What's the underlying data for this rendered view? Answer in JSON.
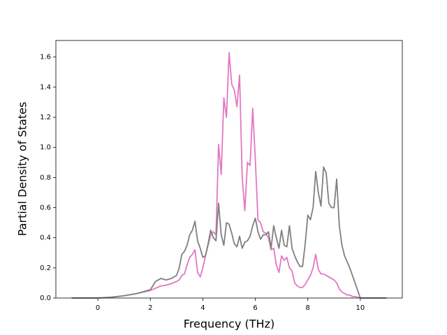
{
  "chart_data": {
    "type": "line",
    "xlabel": "Frequency (THz)",
    "ylabel": "Partial Density of States",
    "x": [
      -1,
      0,
      0.5,
      1,
      1.5,
      2,
      2.2,
      2.4,
      2.6,
      2.8,
      3.0,
      3.1,
      3.2,
      3.3,
      3.4,
      3.5,
      3.6,
      3.7,
      3.8,
      3.9,
      4.0,
      4.1,
      4.2,
      4.3,
      4.4,
      4.5,
      4.6,
      4.7,
      4.8,
      4.9,
      5.0,
      5.1,
      5.2,
      5.3,
      5.4,
      5.5,
      5.6,
      5.7,
      5.8,
      5.9,
      6.0,
      6.1,
      6.2,
      6.3,
      6.4,
      6.5,
      6.6,
      6.7,
      6.8,
      6.9,
      7.0,
      7.1,
      7.2,
      7.3,
      7.4,
      7.5,
      7.6,
      7.7,
      7.8,
      7.9,
      8.0,
      8.1,
      8.2,
      8.3,
      8.4,
      8.5,
      8.6,
      8.7,
      8.8,
      8.9,
      9.0,
      9.1,
      9.2,
      9.3,
      9.4,
      9.5,
      9.6,
      9.7,
      9.8,
      9.9,
      10.0,
      10.5,
      11
    ],
    "series": [
      {
        "color": "#e377c2",
        "values": [
          0,
          0,
          0.005,
          0.015,
          0.03,
          0.05,
          0.065,
          0.08,
          0.085,
          0.095,
          0.11,
          0.12,
          0.15,
          0.16,
          0.22,
          0.27,
          0.29,
          0.32,
          0.17,
          0.14,
          0.2,
          0.28,
          0.35,
          0.42,
          0.44,
          0.42,
          1.02,
          0.82,
          1.33,
          1.2,
          1.63,
          1.42,
          1.38,
          1.27,
          1.48,
          0.8,
          0.58,
          0.9,
          0.88,
          1.26,
          0.92,
          0.52,
          0.5,
          0.44,
          0.43,
          0.4,
          0.32,
          0.33,
          0.22,
          0.17,
          0.28,
          0.25,
          0.27,
          0.2,
          0.18,
          0.1,
          0.08,
          0.07,
          0.07,
          0.09,
          0.12,
          0.15,
          0.2,
          0.29,
          0.19,
          0.16,
          0.16,
          0.15,
          0.14,
          0.13,
          0.12,
          0.1,
          0.06,
          0.04,
          0.03,
          0.02,
          0.02,
          0.01,
          0.01,
          0.005,
          0,
          0,
          0
        ]
      },
      {
        "color": "#7f7f7f",
        "values": [
          0,
          0,
          0.005,
          0.015,
          0.03,
          0.055,
          0.11,
          0.13,
          0.12,
          0.13,
          0.15,
          0.2,
          0.29,
          0.31,
          0.35,
          0.42,
          0.45,
          0.51,
          0.38,
          0.33,
          0.27,
          0.28,
          0.36,
          0.45,
          0.4,
          0.38,
          0.63,
          0.42,
          0.35,
          0.5,
          0.49,
          0.43,
          0.36,
          0.34,
          0.41,
          0.33,
          0.37,
          0.38,
          0.41,
          0.48,
          0.53,
          0.44,
          0.39,
          0.42,
          0.42,
          0.44,
          0.33,
          0.48,
          0.4,
          0.33,
          0.45,
          0.35,
          0.34,
          0.48,
          0.33,
          0.28,
          0.24,
          0.21,
          0.21,
          0.36,
          0.55,
          0.52,
          0.6,
          0.84,
          0.7,
          0.61,
          0.87,
          0.83,
          0.63,
          0.6,
          0.6,
          0.79,
          0.48,
          0.35,
          0.28,
          0.24,
          0.2,
          0.15,
          0.1,
          0.05,
          0,
          0,
          0
        ]
      }
    ],
    "xlim": [
      -1.6,
      11.6
    ],
    "xticks": [
      0,
      2,
      4,
      6,
      8,
      10
    ],
    "ylim": [
      0,
      1.71
    ],
    "yticks": [
      {
        "value": 0,
        "label": "0.0"
      },
      0.2,
      0.4,
      0.6,
      0.8,
      {
        "value": 1,
        "label": "1.0"
      },
      1.2,
      1.4,
      1.6
    ]
  }
}
